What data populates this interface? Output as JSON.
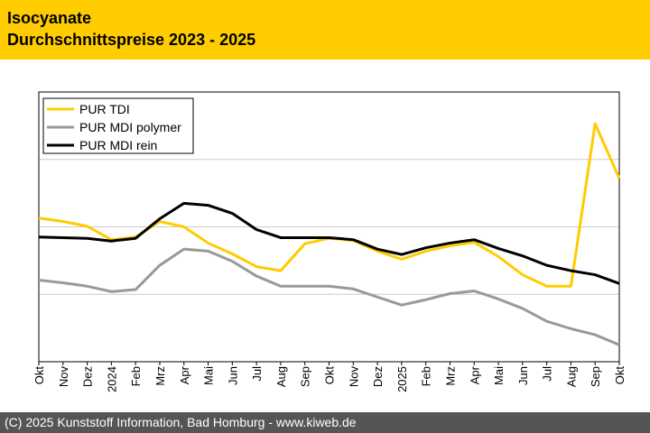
{
  "header": {
    "title": "Isocyanate",
    "subtitle": "Durchschnittspreise 2023 - 2025"
  },
  "footer": "(C) 2025 Kunststoff Information, Bad Homburg - www.kiweb.de",
  "chart_data": {
    "type": "line",
    "title": "Isocyanate Durchschnittspreise 2023 - 2025",
    "xlabel": "",
    "ylabel": "",
    "ylim": [
      0,
      4
    ],
    "grid": "horizontal",
    "legend": "top-left",
    "categories": [
      "Okt",
      "Nov",
      "Dez",
      "2024",
      "Feb",
      "Mrz",
      "Apr",
      "Mai",
      "Jun",
      "Jul",
      "Aug",
      "Sep",
      "Okt",
      "Nov",
      "Dez",
      "2025",
      "Feb",
      "Mrz",
      "Apr",
      "Mai",
      "Jun",
      "Jul",
      "Aug",
      "Sep",
      "Okt"
    ],
    "series": [
      {
        "name": "PUR TDI",
        "color": "#ffcc00",
        "values": [
          2.13,
          2.08,
          2.01,
          1.81,
          1.85,
          2.08,
          2.0,
          1.76,
          1.6,
          1.41,
          1.35,
          1.75,
          1.83,
          1.8,
          1.64,
          1.52,
          1.64,
          1.72,
          1.77,
          1.56,
          1.29,
          1.12,
          1.12,
          3.53,
          2.72
        ]
      },
      {
        "name": "PUR MDI polymer",
        "color": "#999999",
        "values": [
          1.21,
          1.17,
          1.12,
          1.04,
          1.07,
          1.43,
          1.67,
          1.64,
          1.49,
          1.27,
          1.12,
          1.12,
          1.12,
          1.08,
          0.96,
          0.84,
          0.92,
          1.01,
          1.05,
          0.93,
          0.79,
          0.6,
          0.49,
          0.4,
          0.25
        ]
      },
      {
        "name": "PUR MDI rein",
        "color": "#000000",
        "values": [
          1.85,
          1.84,
          1.83,
          1.79,
          1.83,
          2.12,
          2.35,
          2.32,
          2.2,
          1.96,
          1.84,
          1.84,
          1.84,
          1.81,
          1.67,
          1.59,
          1.69,
          1.76,
          1.81,
          1.68,
          1.57,
          1.43,
          1.35,
          1.29,
          1.16
        ]
      }
    ]
  }
}
